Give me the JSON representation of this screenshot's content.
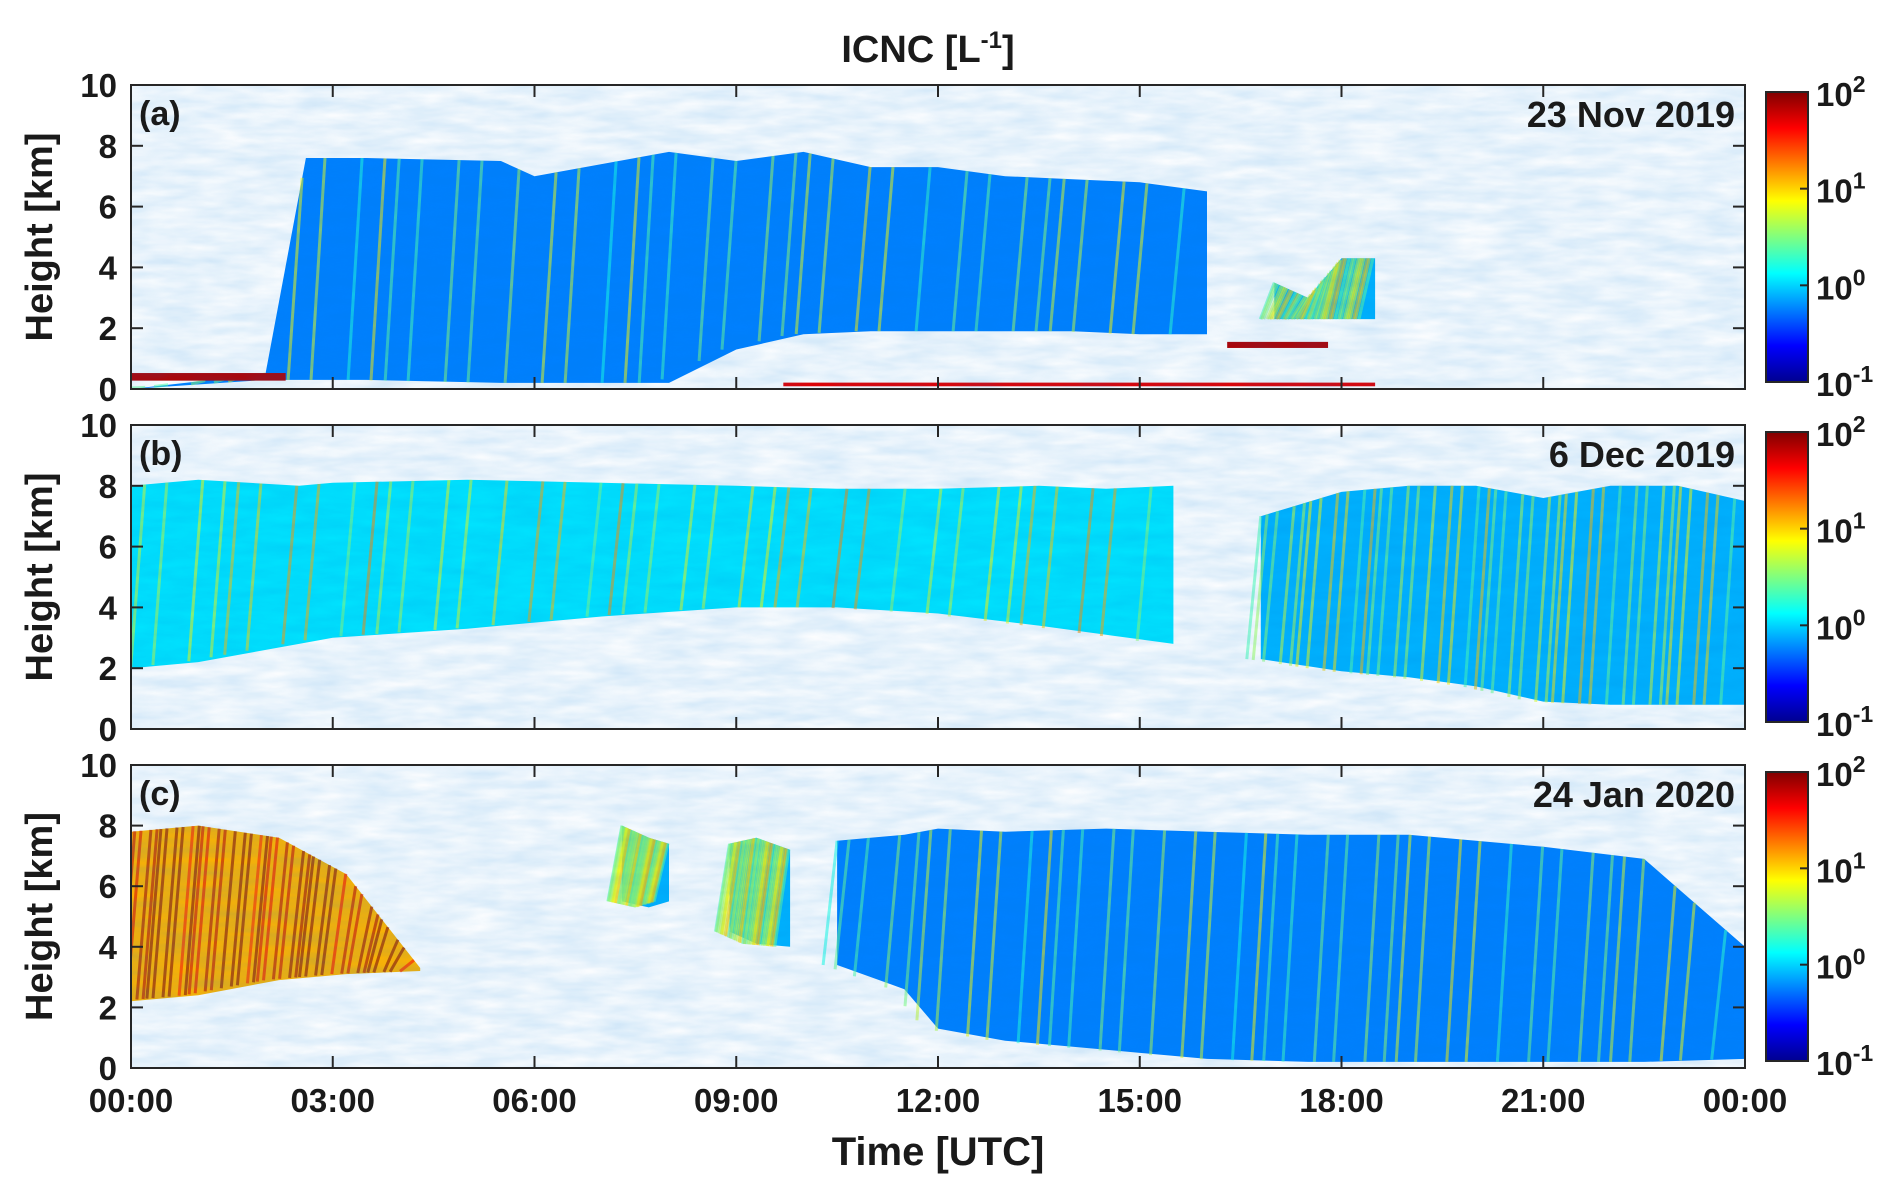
{
  "chart_data": {
    "type": "heatmap",
    "title_base": "ICNC [L",
    "title_sup": "-1",
    "title_end": "]",
    "xlabel": "Time [UTC]",
    "ylabel": "Height [km]",
    "x_ticks": [
      "00:00",
      "03:00",
      "06:00",
      "09:00",
      "12:00",
      "15:00",
      "18:00",
      "21:00",
      "00:00"
    ],
    "x_range_hours": [
      0,
      24
    ],
    "y_ticks": [
      "0",
      "2",
      "4",
      "6",
      "8",
      "10"
    ],
    "y_range_km": [
      0,
      10
    ],
    "colorbar": {
      "scale": "log",
      "range": [
        0.1,
        100
      ],
      "colormap": "jet",
      "ticks": [
        {
          "base": "10",
          "exp": "-1",
          "value": 0.1
        },
        {
          "base": "10",
          "exp": "0",
          "value": 1
        },
        {
          "base": "10",
          "exp": "1",
          "value": 10
        },
        {
          "base": "10",
          "exp": "2",
          "value": 100
        }
      ]
    },
    "panels": [
      {
        "label": "(a)",
        "date": "23 Nov 2019",
        "regions": [
          {
            "kind": "cloud",
            "t": [
              0,
              2.0,
              2.6,
              3.5,
              5.5,
              6.0,
              8.0,
              9.0,
              10.0,
              11.0,
              12.0,
              13.0,
              14.0,
              15.0,
              16.0
            ],
            "top": [
              0,
              0.5,
              7.6,
              7.6,
              7.5,
              7.0,
              7.8,
              7.5,
              7.8,
              7.3,
              7.3,
              7.0,
              6.9,
              6.8,
              6.5
            ],
            "bottom": [
              0,
              0.3,
              0.3,
              0.3,
              0.2,
              0.2,
              0.2,
              1.3,
              1.8,
              1.9,
              1.9,
              1.9,
              1.9,
              1.8,
              1.8
            ],
            "intensity": 0.25
          },
          {
            "kind": "cloud",
            "t": [
              17.0,
              17.5,
              18.0,
              18.5
            ],
            "top": [
              3.5,
              3.0,
              4.3,
              4.3
            ],
            "bottom": [
              2.3,
              2.3,
              2.3,
              2.3
            ],
            "intensity": 0.3
          },
          {
            "kind": "layer",
            "t": [
              0,
              2.3
            ],
            "level": 0.4,
            "thickness": 0.25,
            "intensity": 0.95
          },
          {
            "kind": "layer",
            "t": [
              9.7,
              18.5
            ],
            "level": 0.15,
            "thickness": 0.12,
            "intensity": 0.9
          },
          {
            "kind": "layer",
            "t": [
              16.3,
              17.8
            ],
            "level": 1.45,
            "thickness": 0.2,
            "intensity": 0.95
          }
        ]
      },
      {
        "label": "(b)",
        "date": "6 Dec 2019",
        "regions": [
          {
            "kind": "cloud",
            "t": [
              0,
              1.0,
              2.5,
              3.0,
              5.0,
              7.0,
              9.0,
              10.5,
              12.0,
              13.5,
              14.5,
              15.5
            ],
            "top": [
              8.0,
              8.2,
              8.0,
              8.1,
              8.2,
              8.1,
              8.0,
              7.9,
              7.9,
              8.0,
              7.9,
              8.0
            ],
            "bottom": [
              2.0,
              2.2,
              2.8,
              3.0,
              3.3,
              3.7,
              4.0,
              4.0,
              3.8,
              3.4,
              3.1,
              2.8
            ],
            "intensity": 0.35
          },
          {
            "kind": "cloud",
            "t": [
              16.8,
              18.0,
              19.0,
              20.0,
              21.0,
              22.0,
              23.0,
              24.0
            ],
            "top": [
              7.0,
              7.8,
              8.0,
              8.0,
              7.6,
              8.0,
              8.0,
              7.5
            ],
            "bottom": [
              2.3,
              1.9,
              1.7,
              1.4,
              0.9,
              0.8,
              0.8,
              0.8
            ],
            "intensity": 0.3
          }
        ]
      },
      {
        "label": "(c)",
        "date": "24 Jan 2020",
        "regions": [
          {
            "kind": "cloud",
            "t": [
              0,
              1.0,
              2.2,
              3.2,
              4.3
            ],
            "top": [
              7.8,
              8.0,
              7.6,
              6.4,
              3.3
            ],
            "bottom": [
              2.2,
              2.4,
              2.9,
              3.1,
              3.2
            ],
            "intensity": 0.7
          },
          {
            "kind": "cloud",
            "t": [
              7.3,
              7.7,
              8.0
            ],
            "top": [
              8.0,
              7.6,
              7.4
            ],
            "bottom": [
              5.5,
              5.3,
              5.5
            ],
            "intensity": 0.3
          },
          {
            "kind": "cloud",
            "t": [
              8.9,
              9.3,
              9.8
            ],
            "top": [
              7.4,
              7.6,
              7.2
            ],
            "bottom": [
              4.5,
              4.1,
              4.0
            ],
            "intensity": 0.3
          },
          {
            "kind": "cloud",
            "t": [
              10.5,
              11.5,
              12.0,
              13.0,
              14.5,
              16.0,
              17.5,
              19.0,
              21.0,
              22.5,
              24.0
            ],
            "top": [
              7.5,
              7.7,
              7.9,
              7.8,
              7.9,
              7.8,
              7.7,
              7.7,
              7.3,
              6.9,
              4.0
            ],
            "bottom": [
              3.4,
              2.6,
              1.3,
              0.9,
              0.6,
              0.3,
              0.2,
              0.2,
              0.2,
              0.2,
              0.3
            ],
            "intensity": 0.25
          }
        ]
      }
    ]
  }
}
